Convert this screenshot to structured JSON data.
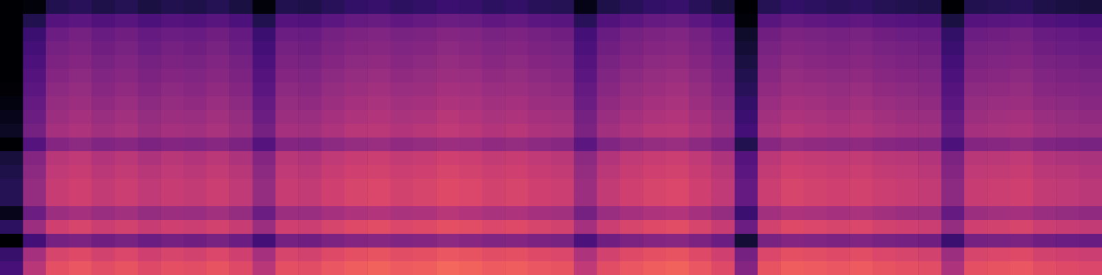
{
  "chart_data": {
    "type": "heatmap",
    "tick_labels": false,
    "color": "magma",
    "color_range": [
      0,
      100
    ],
    "cells": [
      [
        0,
        2,
        14,
        16,
        13,
        15,
        12,
        14,
        13,
        15,
        12,
        2,
        14,
        13,
        16,
        18,
        19,
        17,
        18,
        20,
        19,
        17,
        18,
        16,
        15,
        4,
        13,
        16,
        18,
        19,
        16,
        12,
        0,
        15,
        18,
        17,
        16,
        17,
        15,
        14,
        13,
        0,
        14,
        15,
        16,
        13,
        12,
        11
      ],
      [
        0,
        14,
        26,
        28,
        25,
        27,
        24,
        26,
        25,
        27,
        24,
        14,
        26,
        25,
        28,
        30,
        31,
        29,
        30,
        32,
        31,
        29,
        30,
        28,
        27,
        16,
        25,
        28,
        30,
        31,
        28,
        24,
        2,
        27,
        30,
        29,
        28,
        29,
        27,
        26,
        25,
        12,
        26,
        27,
        28,
        25,
        24,
        23
      ],
      [
        0,
        20,
        32,
        34,
        31,
        33,
        30,
        32,
        31,
        33,
        30,
        20,
        32,
        31,
        34,
        36,
        37,
        35,
        36,
        38,
        37,
        35,
        36,
        34,
        33,
        22,
        31,
        34,
        36,
        37,
        34,
        30,
        8,
        33,
        36,
        35,
        34,
        35,
        33,
        32,
        31,
        18,
        32,
        33,
        34,
        31,
        30,
        29
      ],
      [
        0,
        22,
        34,
        36,
        33,
        35,
        32,
        34,
        33,
        35,
        32,
        22,
        34,
        33,
        36,
        38,
        39,
        37,
        38,
        40,
        39,
        37,
        38,
        36,
        35,
        24,
        33,
        36,
        38,
        39,
        36,
        32,
        10,
        35,
        38,
        37,
        36,
        37,
        35,
        34,
        33,
        20,
        34,
        35,
        36,
        33,
        32,
        31
      ],
      [
        0,
        24,
        36,
        38,
        35,
        37,
        34,
        36,
        35,
        37,
        34,
        24,
        36,
        35,
        38,
        40,
        41,
        39,
        40,
        42,
        41,
        39,
        40,
        38,
        37,
        26,
        35,
        38,
        40,
        41,
        38,
        34,
        12,
        37,
        40,
        39,
        38,
        39,
        37,
        36,
        35,
        22,
        36,
        37,
        38,
        35,
        34,
        33
      ],
      [
        0,
        26,
        38,
        40,
        37,
        39,
        36,
        38,
        37,
        39,
        36,
        26,
        38,
        37,
        40,
        42,
        43,
        41,
        42,
        44,
        43,
        41,
        42,
        40,
        39,
        28,
        37,
        40,
        42,
        43,
        40,
        36,
        14,
        39,
        42,
        41,
        40,
        41,
        39,
        38,
        37,
        24,
        38,
        39,
        40,
        37,
        36,
        35
      ],
      [
        1,
        28,
        40,
        42,
        39,
        41,
        38,
        40,
        39,
        41,
        38,
        28,
        40,
        39,
        42,
        44,
        45,
        43,
        44,
        46,
        45,
        43,
        44,
        42,
        41,
        30,
        39,
        42,
        44,
        45,
        42,
        38,
        16,
        41,
        44,
        43,
        42,
        43,
        41,
        40,
        39,
        26,
        40,
        41,
        42,
        39,
        38,
        37
      ],
      [
        3,
        30,
        42,
        44,
        41,
        43,
        40,
        42,
        41,
        43,
        40,
        30,
        42,
        41,
        44,
        46,
        47,
        45,
        46,
        48,
        47,
        45,
        46,
        44,
        43,
        32,
        41,
        44,
        46,
        47,
        44,
        40,
        18,
        43,
        46,
        45,
        44,
        45,
        43,
        42,
        41,
        28,
        42,
        43,
        44,
        41,
        40,
        39
      ],
      [
        5,
        32,
        44,
        46,
        43,
        45,
        42,
        44,
        43,
        45,
        42,
        32,
        44,
        43,
        46,
        48,
        49,
        47,
        48,
        50,
        49,
        47,
        48,
        46,
        45,
        34,
        43,
        46,
        48,
        49,
        46,
        42,
        20,
        45,
        48,
        47,
        46,
        47,
        45,
        44,
        43,
        30,
        44,
        45,
        46,
        43,
        42,
        41
      ],
      [
        7,
        34,
        46,
        48,
        45,
        47,
        44,
        46,
        45,
        47,
        44,
        34,
        46,
        45,
        48,
        50,
        51,
        49,
        50,
        52,
        51,
        49,
        50,
        48,
        47,
        36,
        45,
        48,
        50,
        51,
        48,
        44,
        22,
        47,
        50,
        49,
        48,
        49,
        47,
        46,
        45,
        32,
        46,
        47,
        48,
        45,
        44,
        43
      ],
      [
        0,
        26,
        38,
        40,
        37,
        39,
        36,
        38,
        37,
        39,
        36,
        26,
        38,
        37,
        40,
        42,
        43,
        41,
        42,
        44,
        43,
        41,
        42,
        40,
        39,
        28,
        37,
        40,
        42,
        43,
        40,
        36,
        14,
        39,
        42,
        41,
        40,
        41,
        39,
        38,
        37,
        24,
        38,
        39,
        40,
        37,
        36,
        35
      ],
      [
        11,
        38,
        50,
        52,
        49,
        51,
        48,
        50,
        49,
        51,
        48,
        38,
        50,
        49,
        52,
        54,
        55,
        53,
        54,
        56,
        55,
        53,
        54,
        52,
        51,
        40,
        49,
        52,
        54,
        55,
        52,
        48,
        26,
        51,
        54,
        53,
        52,
        53,
        51,
        50,
        49,
        36,
        50,
        51,
        52,
        49,
        48,
        47
      ],
      [
        13,
        40,
        52,
        54,
        51,
        53,
        50,
        52,
        51,
        53,
        50,
        40,
        52,
        51,
        54,
        56,
        57,
        55,
        56,
        58,
        57,
        55,
        56,
        54,
        53,
        42,
        51,
        54,
        56,
        57,
        54,
        50,
        28,
        53,
        56,
        55,
        54,
        55,
        53,
        52,
        51,
        38,
        52,
        53,
        54,
        51,
        50,
        49
      ],
      [
        15,
        42,
        54,
        56,
        53,
        55,
        52,
        54,
        53,
        55,
        52,
        42,
        54,
        53,
        56,
        58,
        59,
        57,
        58,
        60,
        59,
        57,
        58,
        56,
        55,
        44,
        53,
        56,
        58,
        59,
        56,
        52,
        30,
        55,
        58,
        57,
        56,
        57,
        55,
        54,
        53,
        40,
        54,
        55,
        56,
        53,
        52,
        51
      ],
      [
        15,
        42,
        54,
        56,
        53,
        55,
        52,
        54,
        53,
        55,
        52,
        42,
        54,
        53,
        56,
        58,
        59,
        57,
        58,
        60,
        59,
        57,
        58,
        56,
        55,
        44,
        53,
        56,
        58,
        59,
        56,
        52,
        30,
        55,
        58,
        57,
        56,
        57,
        55,
        54,
        53,
        40,
        54,
        55,
        56,
        53,
        52,
        51
      ],
      [
        5,
        32,
        44,
        46,
        43,
        45,
        42,
        44,
        43,
        45,
        42,
        32,
        44,
        43,
        46,
        48,
        49,
        47,
        48,
        50,
        49,
        47,
        48,
        46,
        45,
        34,
        43,
        46,
        48,
        49,
        46,
        42,
        20,
        45,
        48,
        47,
        46,
        47,
        45,
        44,
        43,
        30,
        44,
        45,
        46,
        43,
        42,
        41
      ],
      [
        17,
        44,
        56,
        58,
        55,
        57,
        54,
        56,
        55,
        57,
        54,
        44,
        56,
        55,
        58,
        60,
        61,
        59,
        60,
        62,
        61,
        59,
        60,
        58,
        57,
        46,
        55,
        58,
        60,
        61,
        58,
        54,
        32,
        57,
        60,
        59,
        58,
        59,
        57,
        56,
        55,
        42,
        56,
        57,
        58,
        55,
        54,
        53
      ],
      [
        0,
        22,
        34,
        36,
        33,
        35,
        32,
        34,
        33,
        35,
        32,
        22,
        34,
        33,
        36,
        38,
        39,
        37,
        38,
        40,
        39,
        37,
        38,
        36,
        35,
        24,
        33,
        36,
        38,
        39,
        36,
        32,
        10,
        35,
        38,
        37,
        36,
        37,
        35,
        34,
        33,
        20,
        34,
        35,
        36,
        33,
        32,
        31
      ],
      [
        19,
        46,
        58,
        60,
        57,
        59,
        56,
        58,
        57,
        59,
        56,
        46,
        58,
        57,
        60,
        62,
        63,
        61,
        62,
        64,
        63,
        61,
        62,
        60,
        59,
        48,
        57,
        60,
        62,
        63,
        60,
        56,
        34,
        59,
        62,
        61,
        60,
        61,
        59,
        58,
        57,
        44,
        58,
        59,
        60,
        57,
        56,
        55
      ],
      [
        23,
        50,
        62,
        64,
        61,
        63,
        60,
        62,
        61,
        63,
        60,
        50,
        62,
        61,
        64,
        66,
        67,
        65,
        66,
        68,
        67,
        65,
        66,
        64,
        63,
        52,
        61,
        64,
        66,
        67,
        64,
        60,
        38,
        63,
        66,
        65,
        64,
        65,
        63,
        62,
        61,
        48,
        62,
        63,
        64,
        61,
        60,
        59
      ]
    ]
  }
}
